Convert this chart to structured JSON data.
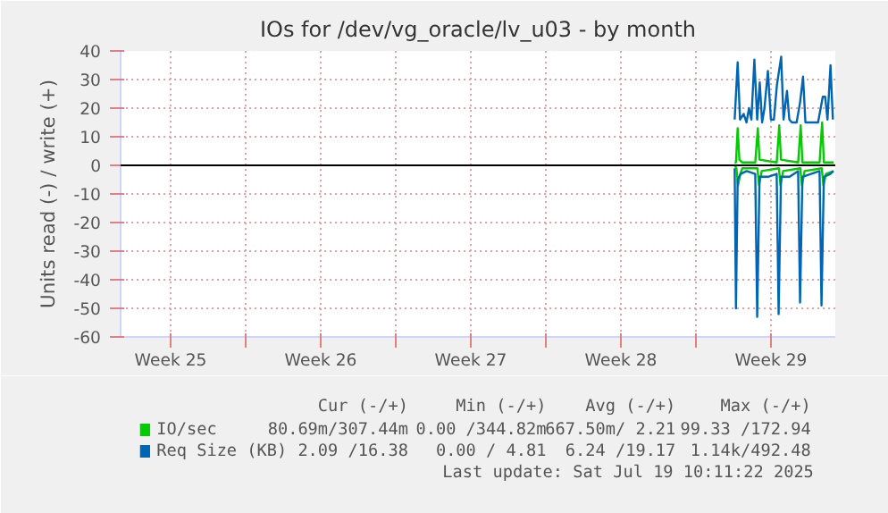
{
  "chart_data": {
    "type": "line",
    "title": "IOs for /dev/vg_oracle/lv_u03 - by month",
    "ylabel": "Units read (-) / write (+)",
    "xlim": [
      "2025-06-16T04:00",
      "2025-07-19T12:00"
    ],
    "ylim": [
      -60,
      40
    ],
    "xticks": [
      {
        "value": "2025-06-18T12:00",
        "label": "Week 25"
      },
      {
        "value": "2025-06-22T00:00",
        "label": null
      },
      {
        "value": "2025-06-25T12:00",
        "label": "Week 26"
      },
      {
        "value": "2025-06-29T00:00",
        "label": null
      },
      {
        "value": "2025-07-02T12:00",
        "label": "Week 27"
      },
      {
        "value": "2025-07-06T00:00",
        "label": null
      },
      {
        "value": "2025-07-09T12:00",
        "label": "Week 28"
      },
      {
        "value": "2025-07-13T00:00",
        "label": null
      },
      {
        "value": "2025-07-16T12:00",
        "label": "Week 29"
      }
    ],
    "yticks": [
      -60,
      -50,
      -40,
      -30,
      -20,
      -10,
      0,
      10,
      20,
      30,
      40
    ],
    "grid": true,
    "legend": "bottom",
    "series": [
      {
        "name": "IO/sec",
        "color": "#00cc00",
        "x": [
          "2025-07-14T19:22",
          "2025-07-14T20:48",
          "2025-07-14T22:43",
          "2025-07-15T00:38",
          "2025-07-15T04:00",
          "2025-07-15T18:24",
          "2025-07-15T21:17",
          "2025-07-15T23:12",
          "2025-07-16T18:24",
          "2025-07-16T21:17",
          "2025-07-16T23:12",
          "2025-07-17T18:24",
          "2025-07-17T21:17",
          "2025-07-17T23:12",
          "2025-07-18T18:24",
          "2025-07-18T21:17",
          "2025-07-18T23:12",
          "2025-07-19T10:00"
        ],
        "values": [
          1,
          1,
          13,
          2,
          1,
          1,
          13,
          2,
          1,
          14,
          2,
          1,
          14,
          1,
          1,
          15,
          1,
          1
        ]
      },
      {
        "color": "#00cc00",
        "x": [
          "2025-07-14T19:22",
          "2025-07-14T21:17",
          "2025-07-14T23:12",
          "2025-07-15T01:36",
          "2025-07-15T04:00",
          "2025-07-15T20:48",
          "2025-07-15T22:43",
          "2025-07-16T01:36",
          "2025-07-16T20:48",
          "2025-07-16T22:43",
          "2025-07-17T01:36",
          "2025-07-17T20:48",
          "2025-07-17T22:43",
          "2025-07-18T01:36",
          "2025-07-18T20:48",
          "2025-07-18T22:43",
          "2025-07-19T01:36",
          "2025-07-19T10:00"
        ],
        "values": [
          0,
          -1,
          -7,
          -3,
          -1,
          -1,
          -7,
          -2,
          -1,
          -7,
          -2,
          -1,
          -7,
          -2,
          -1,
          -7,
          -3,
          -2
        ]
      },
      {
        "name": "Req Size (KB)",
        "color": "#0066b3",
        "x": [
          "2025-07-14T19:22",
          "2025-07-14T22:43",
          "2025-07-15T01:22",
          "2025-07-15T05:26",
          "2025-07-15T08:34",
          "2025-07-15T11:26",
          "2025-07-15T14:05",
          "2025-07-15T17:26",
          "2025-07-15T20:34",
          "2025-07-15T23:26",
          "2025-07-16T02:05",
          "2025-07-16T04:43",
          "2025-07-16T08:34",
          "2025-07-16T11:55",
          "2025-07-16T15:17",
          "2025-07-16T18:38",
          "2025-07-16T23:26",
          "2025-07-17T02:05",
          "2025-07-17T05:55",
          "2025-07-17T08:34",
          "2025-07-17T11:26",
          "2025-07-17T16:43",
          "2025-07-17T20:34",
          "2025-07-17T23:55",
          "2025-07-18T02:34",
          "2025-07-18T08:34",
          "2025-07-18T16:43",
          "2025-07-18T22:00",
          "2025-07-19T00:38",
          "2025-07-19T03:17",
          "2025-07-19T06:38",
          "2025-07-19T09:17"
        ],
        "values": [
          16,
          36,
          16,
          18,
          15,
          20,
          16,
          37,
          16,
          29,
          15,
          20,
          33,
          16,
          16,
          28,
          38,
          16,
          26,
          16,
          15,
          15,
          22,
          31,
          15,
          15,
          15,
          24,
          24,
          16,
          35,
          16
        ]
      },
      {
        "color": "#0066b3",
        "x": [
          "2025-07-14T19:22",
          "2025-07-14T20:48",
          "2025-07-14T22:43",
          "2025-07-15T02:05",
          "2025-07-15T08:48",
          "2025-07-15T18:24",
          "2025-07-15T20:34",
          "2025-07-15T23:12",
          "2025-07-16T08:48",
          "2025-07-16T18:24",
          "2025-07-16T20:34",
          "2025-07-16T23:12",
          "2025-07-17T08:48",
          "2025-07-17T18:24",
          "2025-07-17T20:34",
          "2025-07-17T23:12",
          "2025-07-18T08:48",
          "2025-07-18T18:24",
          "2025-07-18T20:34",
          "2025-07-18T23:12",
          "2025-07-19T06:24",
          "2025-07-19T10:00"
        ],
        "values": [
          -1,
          -50,
          -5,
          -3,
          -2,
          -3,
          -53,
          -4,
          -4,
          -3,
          -52,
          -4,
          -4,
          -2,
          -48,
          -4,
          -3,
          -2,
          -49,
          -4,
          -3,
          -2
        ]
      }
    ],
    "ref_lines": [
      {
        "axis": "y",
        "value": 0,
        "color": "#000000"
      }
    ],
    "annotations": [
      "Cur (-/+)",
      "Min (-/+)",
      "Avg (-/+)",
      "Max (-/+)",
      "80.69m/307.44m",
      "0.00 /344.82m",
      "667.50m/ 2.21",
      "99.33 /172.94",
      "2.09 /16.38",
      "0.00 / 4.81",
      "6.24 /19.17",
      "1.14k/492.48",
      "Last update: Sat Jul 19 10:11:22 2025"
    ]
  }
}
